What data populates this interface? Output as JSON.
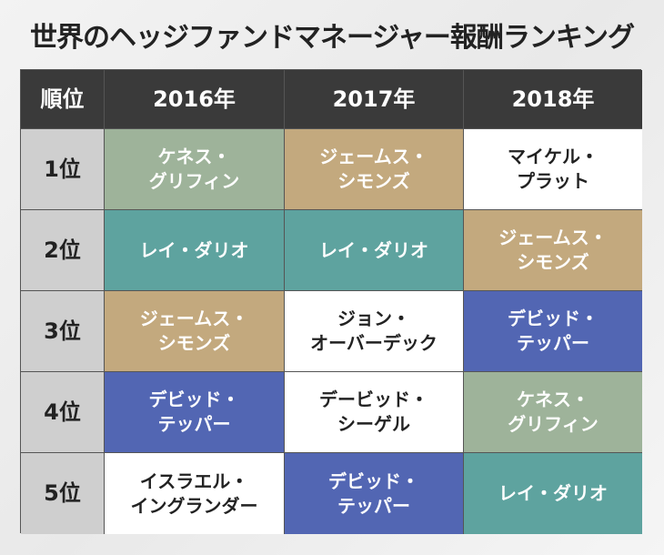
{
  "title": "世界のヘッジファンドマネージャー報酬ランキング",
  "colors": {
    "header_bg": "#3a3a3a",
    "rank_bg": "#cfcfcf",
    "green": "#9eb39a",
    "tan": "#c3a97e",
    "teal": "#5ea39f",
    "blue": "#5266b3",
    "white": "#ffffff"
  },
  "header": [
    "順位",
    "2016年",
    "2017年",
    "2018年"
  ],
  "rows": [
    {
      "rank": "1位",
      "cells": [
        {
          "name": "ケネス・\nグリフィン",
          "color": "green"
        },
        {
          "name": "ジェームス・\nシモンズ",
          "color": "tan"
        },
        {
          "name": "マイケル・\nプラット",
          "color": "white"
        }
      ]
    },
    {
      "rank": "2位",
      "cells": [
        {
          "name": "レイ・ダリオ",
          "color": "teal"
        },
        {
          "name": "レイ・ダリオ",
          "color": "teal"
        },
        {
          "name": "ジェームス・\nシモンズ",
          "color": "tan"
        }
      ]
    },
    {
      "rank": "3位",
      "cells": [
        {
          "name": "ジェームス・\nシモンズ",
          "color": "tan"
        },
        {
          "name": "ジョン・\nオーバーデック",
          "color": "white"
        },
        {
          "name": "デビッド・\nテッパー",
          "color": "blue"
        }
      ]
    },
    {
      "rank": "4位",
      "cells": [
        {
          "name": "デビッド・\nテッパー",
          "color": "blue"
        },
        {
          "name": "デービッド・\nシーゲル",
          "color": "white"
        },
        {
          "name": "ケネス・\nグリフィン",
          "color": "green"
        }
      ]
    },
    {
      "rank": "5位",
      "cells": [
        {
          "name": "イスラエル・\nイングランダー",
          "color": "white"
        },
        {
          "name": "デビッド・\nテッパー",
          "color": "blue"
        },
        {
          "name": "レイ・ダリオ",
          "color": "teal"
        }
      ]
    }
  ]
}
